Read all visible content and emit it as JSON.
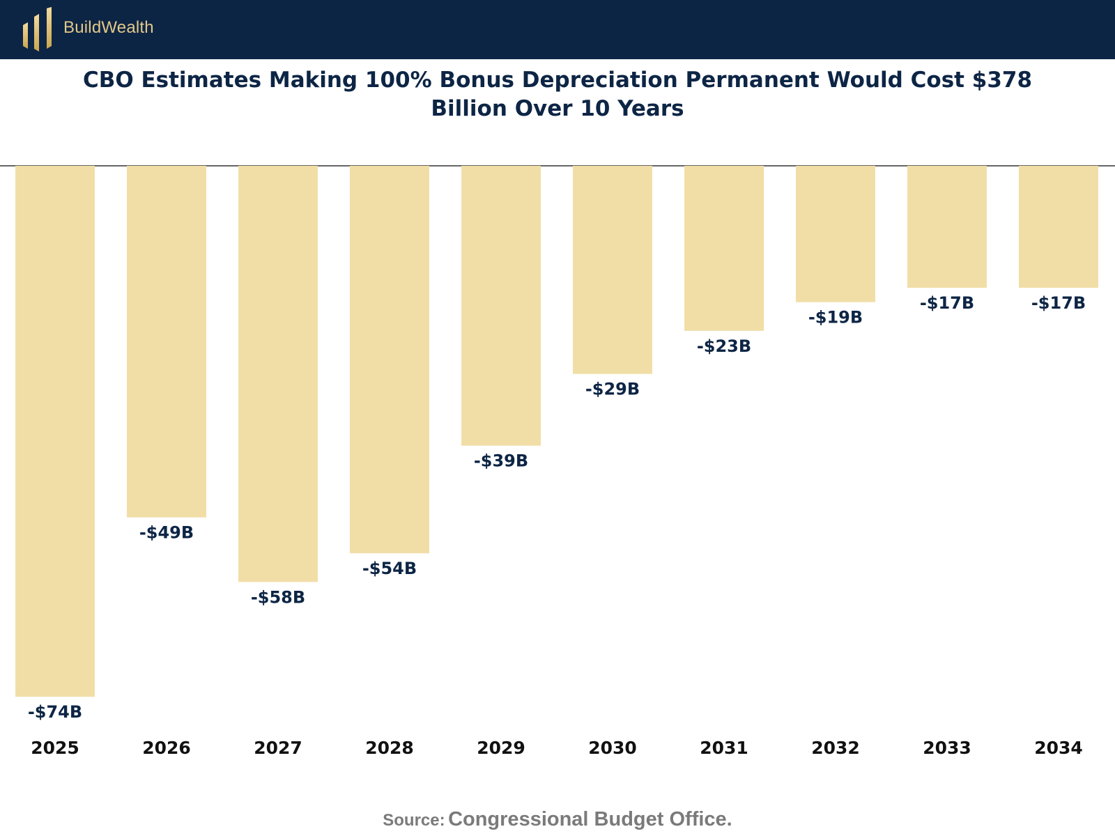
{
  "brand": {
    "name": "BuildWealth"
  },
  "title": {
    "line1": "CBO Estimates Making 100% Bonus Depreciation Permanent Would Cost $378",
    "line2": "Billion Over 10 Years"
  },
  "source": {
    "label": "Source:",
    "value": "Congressional Budget Office",
    "end": "."
  },
  "colors": {
    "bar": "#f1dea7",
    "text": "#0d2545",
    "header": "#0d2545",
    "brand": "#e3c88a",
    "source": "#7a7a7a"
  },
  "chart_data": {
    "type": "bar",
    "categories": [
      "2025",
      "2026",
      "2027",
      "2028",
      "2029",
      "2030",
      "2031",
      "2032",
      "2033",
      "2034"
    ],
    "values": [
      -74,
      -49,
      -58,
      -54,
      -39,
      -29,
      -23,
      -19,
      -17,
      -17
    ],
    "data_labels": [
      "-$74B",
      "-$49B",
      "-$58B",
      "-$54B",
      "-$39B",
      "-$29B",
      "-$23B",
      "-$19B",
      "-$17B",
      "-$17B"
    ],
    "title": "CBO Estimates Making 100% Bonus Depreciation Permanent Would Cost $378 Billion Over 10 Years",
    "ylim": [
      -80,
      0
    ],
    "grid": false,
    "legend": "none"
  }
}
